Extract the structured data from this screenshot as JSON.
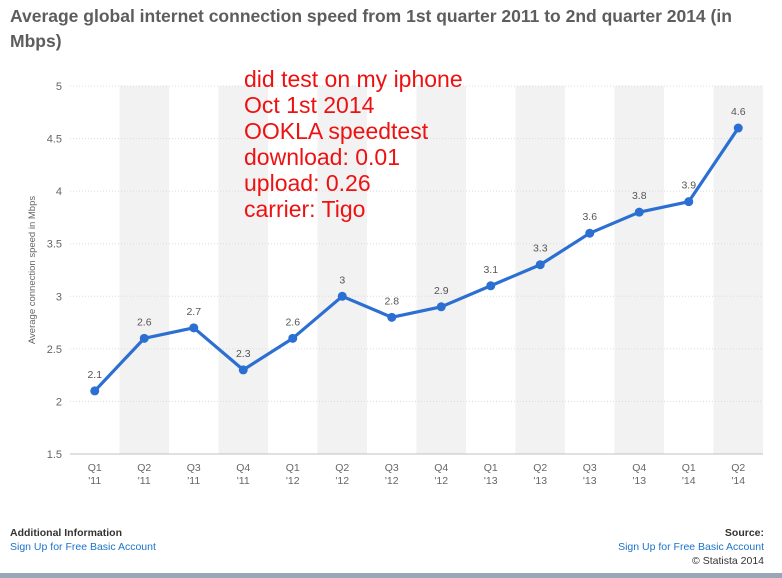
{
  "colors": {
    "line": "#2a6fd1",
    "title": "#5d5d5d",
    "annotation": "#ee1111",
    "band": "#f2f2f2",
    "link": "#1a73c9"
  },
  "chart_data": {
    "type": "line",
    "title": "Average global internet connection speed from 1st quarter 2011 to 2nd quarter 2014 (in Mbps)",
    "xlabel": "",
    "ylabel": "Average connection speed in Mbps",
    "ylim": [
      1.5,
      5
    ],
    "yticks": [
      "1.5",
      "2",
      "2.5",
      "3",
      "3.5",
      "4",
      "4.5",
      "5"
    ],
    "categories": [
      [
        "Q1",
        "'11"
      ],
      [
        "Q2",
        "'11"
      ],
      [
        "Q3",
        "'11"
      ],
      [
        "Q4",
        "'11"
      ],
      [
        "Q1",
        "'12"
      ],
      [
        "Q2",
        "'12"
      ],
      [
        "Q3",
        "'12"
      ],
      [
        "Q4",
        "'12"
      ],
      [
        "Q1",
        "'13"
      ],
      [
        "Q2",
        "'13"
      ],
      [
        "Q3",
        "'13"
      ],
      [
        "Q4",
        "'13"
      ],
      [
        "Q1",
        "'14"
      ],
      [
        "Q2",
        "'14"
      ]
    ],
    "series": [
      {
        "name": "Average connection speed",
        "values": [
          2.1,
          2.6,
          2.7,
          2.3,
          2.6,
          3.0,
          2.8,
          2.9,
          3.1,
          3.3,
          3.6,
          3.8,
          3.9,
          4.6
        ]
      }
    ],
    "data_labels": [
      "2.1",
      "2.6",
      "2.7",
      "2.3",
      "2.6",
      "3",
      "2.8",
      "2.9",
      "3.1",
      "3.3",
      "3.6",
      "3.8",
      "3.9",
      "4.6"
    ],
    "grid": "horizontal",
    "annotation": [
      "did test on my iphone",
      "Oct 1st 2014",
      "OOKLA speedtest",
      "download: 0.01",
      "upload: 0.26",
      "carrier: Tigo"
    ]
  },
  "footer": {
    "additional_info_heading": "Additional Information",
    "left_link": "Sign Up for Free Basic Account",
    "source_heading": "Source:",
    "right_link": "Sign Up for Free Basic Account",
    "copyright": "© Statista 2014"
  }
}
